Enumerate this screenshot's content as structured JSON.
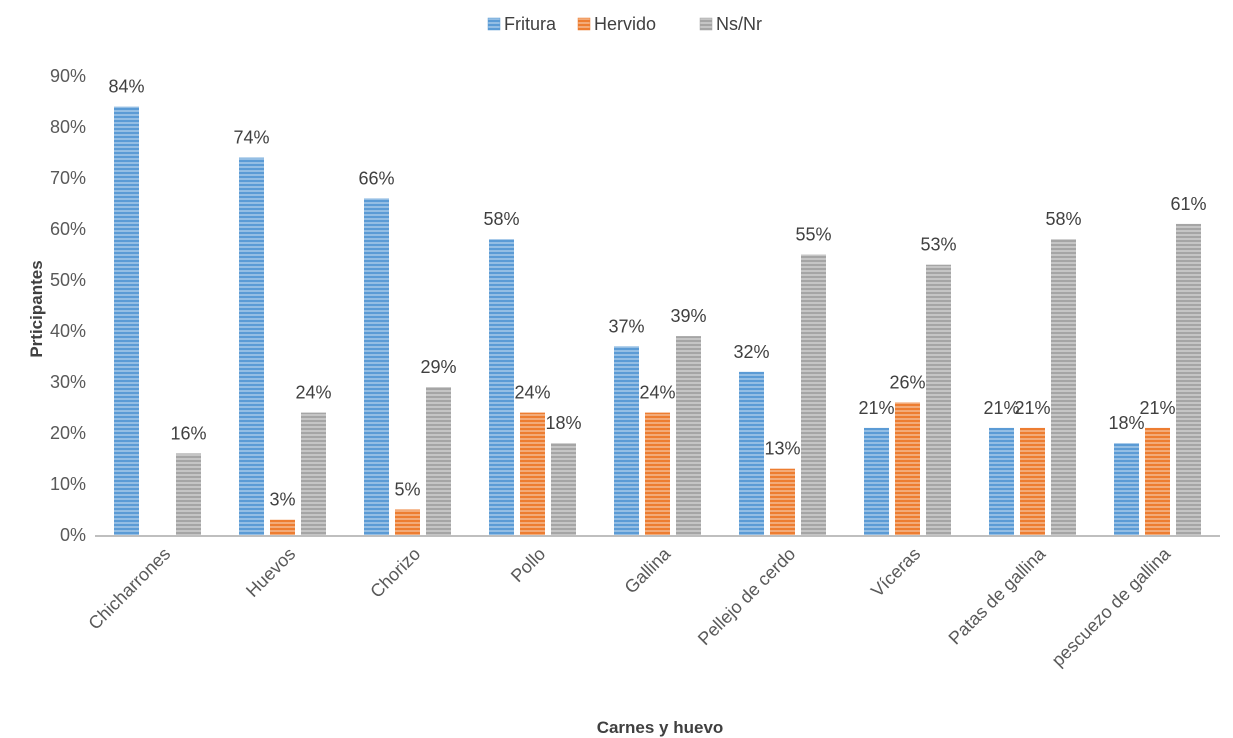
{
  "chart_data": {
    "type": "bar",
    "title": "",
    "xlabel": "Carnes y huevo",
    "ylabel": "Prticipantes",
    "ylim": [
      0,
      90
    ],
    "yticks": [
      "0%",
      "10%",
      "20%",
      "30%",
      "40%",
      "50%",
      "60%",
      "70%",
      "80%",
      "90%"
    ],
    "grid": false,
    "legend_position": "top",
    "categories": [
      "Chicharrones",
      "Huevos",
      "Chorizo",
      "Pollo",
      "Gallina",
      "Pellejo de cerdo",
      "Víceras",
      "Patas de gallina",
      "pescuezo de gallina"
    ],
    "series": [
      {
        "name": "Fritura",
        "color": "#5b9bd5",
        "values": [
          84,
          74,
          66,
          58,
          37,
          32,
          21,
          21,
          18
        ],
        "labels": [
          "84%",
          "74%",
          "66%",
          "58%",
          "37%",
          "32%",
          "21%",
          "21%",
          "18%"
        ]
      },
      {
        "name": "Hervido",
        "color": "#ed7d31",
        "values": [
          0,
          3,
          5,
          24,
          24,
          13,
          26,
          21,
          21
        ],
        "labels": [
          "",
          "3%",
          "5%",
          "24%",
          "24%",
          "13%",
          "26%",
          "21%",
          "21%"
        ]
      },
      {
        "name": "Ns/Nr",
        "color": "#a5a5a5",
        "values": [
          16,
          24,
          29,
          18,
          39,
          55,
          53,
          58,
          61
        ],
        "labels": [
          "16%",
          "24%",
          "29%",
          "18%",
          "39%",
          "55%",
          "53%",
          "58%",
          "61%"
        ]
      }
    ]
  }
}
